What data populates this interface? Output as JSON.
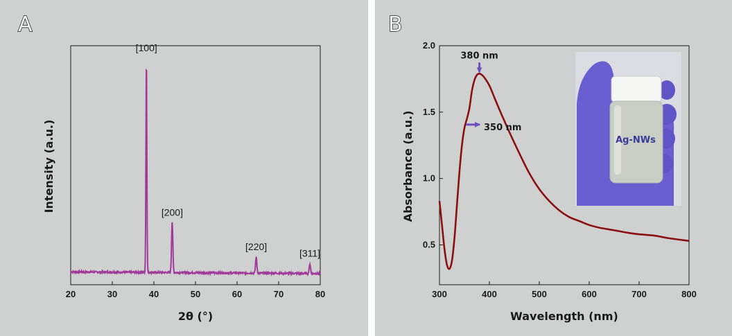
{
  "panels": {
    "a_label": "A",
    "b_label": "B"
  },
  "colors": {
    "xrd_line": "#a03a9a",
    "uv_line": "#8b1010",
    "arrow": "#6a4fc0",
    "glove": "#6a5fd0"
  },
  "inset_photo": {
    "label": "Ag-NWs",
    "description_icon": "vial-in-gloved-hand-photo"
  },
  "chart_data": [
    {
      "type": "line",
      "title": "",
      "xlabel": "2θ (°)",
      "ylabel": "Intensity (a.u.)",
      "xlim": [
        20,
        80
      ],
      "xticks": [
        20,
        30,
        40,
        50,
        60,
        70,
        80
      ],
      "yticks_shown": false,
      "grid": false,
      "baseline_relative": 0.06,
      "peaks": [
        {
          "x": 38.2,
          "rel_intensity": 1.0,
          "label": "[100]"
        },
        {
          "x": 44.4,
          "rel_intensity": 0.235,
          "label": "[200]"
        },
        {
          "x": 64.6,
          "rel_intensity": 0.075,
          "label": "[220]"
        },
        {
          "x": 77.5,
          "rel_intensity": 0.045,
          "label": "[311]"
        }
      ]
    },
    {
      "type": "line",
      "title": "",
      "xlabel": "Wavelength (nm)",
      "ylabel": "Absorbance (a.u.)",
      "xlim": [
        300,
        800
      ],
      "ylim": [
        0.2,
        2.0
      ],
      "xticks": [
        300,
        400,
        500,
        600,
        700,
        800
      ],
      "yticks": [
        "0.5",
        "1.0",
        "1.5",
        "2.0"
      ],
      "grid": false,
      "series": [
        {
          "x": [
            300,
            305,
            310,
            315,
            320,
            325,
            330,
            335,
            340,
            345,
            350,
            355,
            360,
            365,
            370,
            375,
            380,
            385,
            390,
            400,
            410,
            420,
            440,
            460,
            480,
            500,
            520,
            540,
            560,
            580,
            600,
            620,
            650,
            680,
            700,
            730,
            760,
            800
          ],
          "y": [
            0.83,
            0.65,
            0.47,
            0.35,
            0.32,
            0.38,
            0.55,
            0.8,
            1.05,
            1.25,
            1.38,
            1.45,
            1.53,
            1.66,
            1.74,
            1.78,
            1.79,
            1.78,
            1.76,
            1.7,
            1.61,
            1.52,
            1.35,
            1.19,
            1.04,
            0.92,
            0.83,
            0.76,
            0.71,
            0.68,
            0.65,
            0.63,
            0.61,
            0.59,
            0.58,
            0.57,
            0.55,
            0.53
          ]
        }
      ],
      "annotations": [
        {
          "text": "380 nm",
          "x": 380
        },
        {
          "text": "350 nm",
          "x": 350
        }
      ]
    }
  ]
}
